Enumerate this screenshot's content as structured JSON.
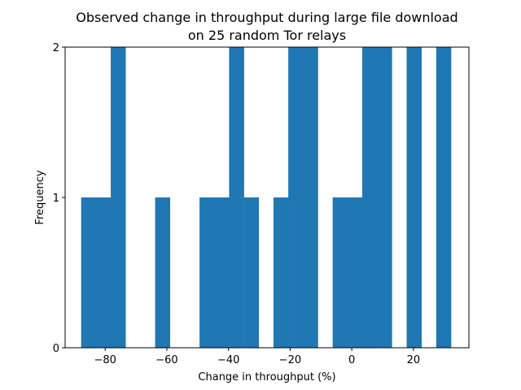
{
  "chart_data": {
    "type": "bar",
    "title_lines": [
      "Observed change in throughput during large file download",
      "on 25 random Tor relays"
    ],
    "xlabel": "Change in throughput (%)",
    "ylabel": "Frequency",
    "xlim": [
      -93.0,
      38.0
    ],
    "ylim": [
      0,
      2
    ],
    "bin_width": 4.8,
    "x_ticks": [
      -80,
      -60,
      -40,
      -20,
      0,
      20
    ],
    "x_tick_labels": [
      "−80",
      "−60",
      "−40",
      "−20",
      "0",
      "20"
    ],
    "y_ticks": [
      0,
      1,
      2
    ],
    "y_tick_labels": [
      "0",
      "1",
      "2"
    ],
    "grid": false,
    "bar_color": "#1f77b4",
    "bins": [
      {
        "x0": -87.8,
        "count": 1
      },
      {
        "x0": -83.0,
        "count": 1
      },
      {
        "x0": -78.2,
        "count": 2
      },
      {
        "x0": -63.8,
        "count": 1
      },
      {
        "x0": -49.4,
        "count": 1
      },
      {
        "x0": -44.6,
        "count": 1
      },
      {
        "x0": -39.8,
        "count": 2
      },
      {
        "x0": -35.0,
        "count": 1
      },
      {
        "x0": -25.4,
        "count": 1
      },
      {
        "x0": -20.6,
        "count": 2
      },
      {
        "x0": -15.8,
        "count": 2
      },
      {
        "x0": -6.2,
        "count": 1
      },
      {
        "x0": -1.4,
        "count": 1
      },
      {
        "x0": 3.4,
        "count": 2
      },
      {
        "x0": 8.2,
        "count": 2
      },
      {
        "x0": 17.8,
        "count": 2
      },
      {
        "x0": 27.4,
        "count": 2
      }
    ]
  }
}
